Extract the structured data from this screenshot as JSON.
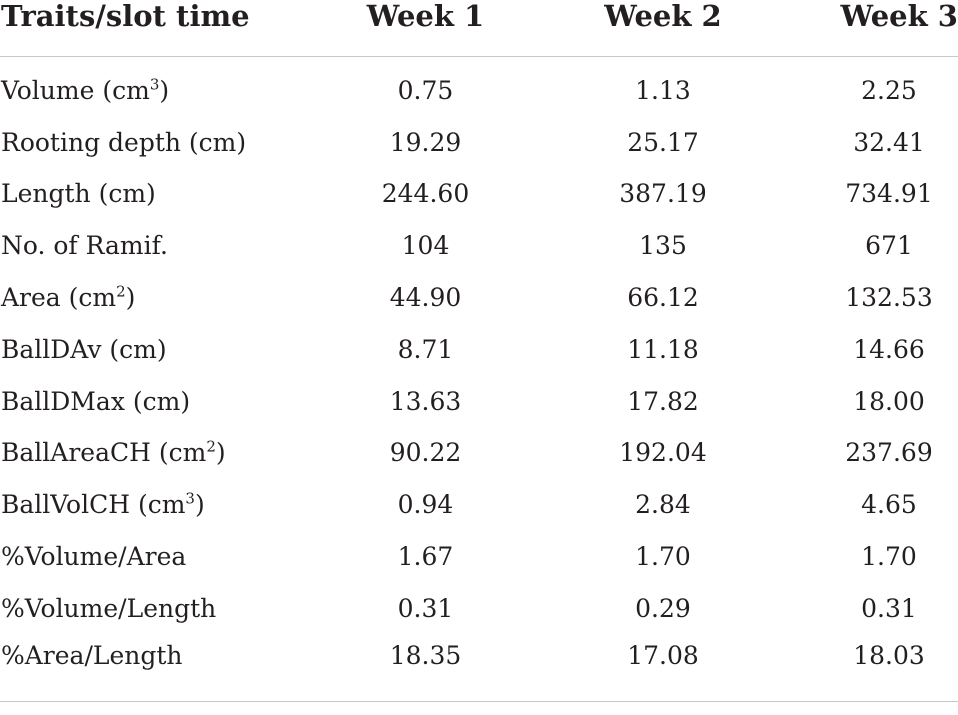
{
  "table": {
    "headers": [
      "Traits/slot time",
      "Week 1",
      "Week 2",
      "Week 3"
    ],
    "rows": [
      {
        "base": "Volume (cm",
        "sup": "3",
        "tail": ")",
        "values": [
          "0.75",
          "1.13",
          "2.25"
        ]
      },
      {
        "base": "Rooting depth (cm)",
        "sup": "",
        "tail": "",
        "values": [
          "19.29",
          "25.17",
          "32.41"
        ]
      },
      {
        "base": "Length (cm)",
        "sup": "",
        "tail": "",
        "values": [
          "244.60",
          "387.19",
          "734.91"
        ]
      },
      {
        "base": "No. of Ramif.",
        "sup": "",
        "tail": "",
        "values": [
          "104",
          "135",
          "671"
        ]
      },
      {
        "base": "Area (cm",
        "sup": "2",
        "tail": ")",
        "values": [
          "44.90",
          "66.12",
          "132.53"
        ]
      },
      {
        "base": "BallDAv (cm)",
        "sup": "",
        "tail": "",
        "values": [
          "8.71",
          "11.18",
          "14.66"
        ]
      },
      {
        "base": "BallDMax (cm)",
        "sup": "",
        "tail": "",
        "values": [
          "13.63",
          "17.82",
          "18.00"
        ]
      },
      {
        "base": "BallAreaCH (cm",
        "sup": "2",
        "tail": ")",
        "values": [
          "90.22",
          "192.04",
          "237.69"
        ]
      },
      {
        "base": "BallVolCH (cm",
        "sup": "3",
        "tail": ")",
        "values": [
          "0.94",
          "2.84",
          "4.65"
        ]
      },
      {
        "base": "%Volume/Area",
        "sup": "",
        "tail": "",
        "values": [
          "1.67",
          "1.70",
          "1.70"
        ]
      },
      {
        "base": "%Volume/Length",
        "sup": "",
        "tail": "",
        "values": [
          "0.31",
          "0.29",
          "0.31"
        ]
      },
      {
        "base": "%Area/Length",
        "sup": "",
        "tail": "",
        "values": [
          "18.35",
          "17.08",
          "18.03"
        ]
      }
    ]
  }
}
